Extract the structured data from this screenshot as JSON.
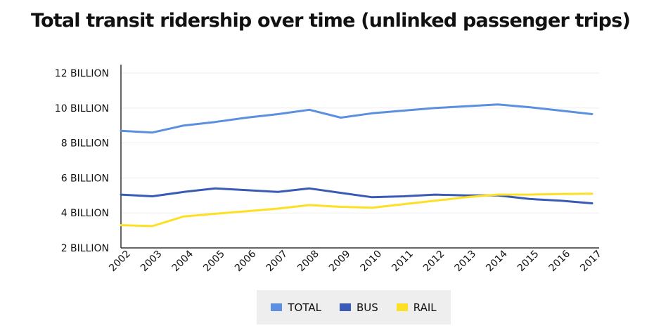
{
  "chart_data": {
    "type": "line",
    "title": "Total transit ridership over time (unlinked passenger trips)",
    "x": [
      "2002",
      "2003",
      "2004",
      "2005",
      "2006",
      "2007",
      "2008",
      "2009",
      "2010",
      "2011",
      "2012",
      "2013",
      "2014",
      "2015",
      "2016",
      "2017"
    ],
    "y_ticks": [
      "2 BILLION",
      "4 BILLION",
      "6 BILLION",
      "8 BILLION",
      "10 BILLION",
      "12 BILLION"
    ],
    "ylim": [
      2,
      12
    ],
    "y_unit": "billion",
    "grid": true,
    "legend_position": "bottom",
    "series": [
      {
        "name": "TOTAL",
        "color": "#5b8fe0",
        "values": [
          8.7,
          8.6,
          9.0,
          9.2,
          9.45,
          9.65,
          9.9,
          9.45,
          9.7,
          9.85,
          10.0,
          10.1,
          10.2,
          10.05,
          9.85,
          9.65
        ]
      },
      {
        "name": "BUS",
        "color": "#3a5bb5",
        "values": [
          5.05,
          4.95,
          5.2,
          5.4,
          5.3,
          5.2,
          5.4,
          5.15,
          4.9,
          4.95,
          5.05,
          5.0,
          5.0,
          4.8,
          4.7,
          4.55
        ]
      },
      {
        "name": "RAIL",
        "color": "#fde024",
        "values": [
          3.3,
          3.25,
          3.8,
          3.95,
          4.1,
          4.25,
          4.45,
          4.35,
          4.3,
          4.5,
          4.7,
          4.9,
          5.05,
          5.05,
          5.08,
          5.1
        ]
      }
    ]
  }
}
